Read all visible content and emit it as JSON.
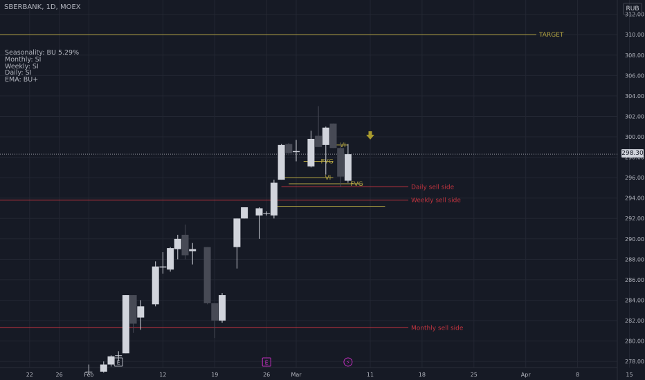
{
  "header": {
    "symbol": "SBERBANK, 1D, MOEX",
    "currency": "RUB"
  },
  "info_panel": [
    "Seasonality: BU 5.29%",
    "Monthly: SI",
    "Weekly: SI",
    "Daily: SI",
    "EMA: BU+"
  ],
  "colors": {
    "background": "#161a25",
    "bull": "#d1d4dc",
    "bear": "#474a55",
    "target": "#b5a642",
    "sell_side": "#c2343f",
    "fvg": "#b5a642",
    "axis_text": "#b2b5be"
  },
  "chart_data": {
    "type": "candlestick",
    "ylim": [
      277.4,
      313.4
    ],
    "y_ticks": [
      278,
      280,
      282,
      284,
      286,
      288,
      290,
      292,
      294,
      296,
      298,
      300,
      302,
      304,
      306,
      308,
      310,
      312
    ],
    "x_ticks": [
      {
        "label": "22",
        "day": -6
      },
      {
        "label": "26",
        "day": -2
      },
      {
        "label": "Feb",
        "day": 2
      },
      {
        "label": "12",
        "day": 12
      },
      {
        "label": "19",
        "day": 19
      },
      {
        "label": "26",
        "day": 26
      },
      {
        "label": "Mar",
        "day": 30
      },
      {
        "label": "11",
        "day": 40
      },
      {
        "label": "18",
        "day": 47
      },
      {
        "label": "25",
        "day": 54
      },
      {
        "label": "Apr",
        "day": 61
      },
      {
        "label": "8",
        "day": 68
      },
      {
        "label": "15",
        "day": 75
      }
    ],
    "candles": [
      {
        "day": 2,
        "o": 277.0,
        "h": 277.7,
        "c": 277.0,
        "l": 276.8
      },
      {
        "day": 4,
        "o": 277.0,
        "h": 278.0,
        "c": 277.7,
        "l": 276.9
      },
      {
        "day": 5,
        "o": 277.7,
        "h": 278.6,
        "c": 278.5,
        "l": 277.5
      },
      {
        "day": 6,
        "o": 278.6,
        "h": 279.0,
        "c": 278.6,
        "l": 278.0
      },
      {
        "day": 7,
        "o": 278.8,
        "h": 284.5,
        "c": 284.5,
        "l": 278.8
      },
      {
        "day": 8,
        "o": 284.5,
        "h": 284.5,
        "c": 281.7,
        "l": 280.8
      },
      {
        "day": 9,
        "o": 282.3,
        "h": 284.0,
        "c": 283.4,
        "l": 281.1
      },
      {
        "day": 11,
        "o": 283.6,
        "h": 287.8,
        "c": 287.3,
        "l": 283.4
      },
      {
        "day": 12,
        "o": 287.2,
        "h": 288.7,
        "c": 287.3,
        "l": 286.6
      },
      {
        "day": 13,
        "o": 287.0,
        "h": 289.2,
        "c": 289.1,
        "l": 286.8
      },
      {
        "day": 14,
        "o": 289.0,
        "h": 290.4,
        "c": 290.0,
        "l": 288.0
      },
      {
        "day": 15,
        "o": 290.4,
        "h": 291.4,
        "c": 288.4,
        "l": 288.0
      },
      {
        "day": 16,
        "o": 288.8,
        "h": 289.6,
        "c": 289.0,
        "l": 287.5
      },
      {
        "day": 18,
        "o": 289.2,
        "h": 289.2,
        "c": 283.7,
        "l": 283.6
      },
      {
        "day": 19,
        "o": 283.7,
        "h": 283.7,
        "c": 282.0,
        "l": 280.3
      },
      {
        "day": 20,
        "o": 282.0,
        "h": 284.7,
        "c": 284.5,
        "l": 281.8
      },
      {
        "day": 22,
        "o": 289.2,
        "h": 292.0,
        "c": 292.0,
        "l": 287.1
      },
      {
        "day": 23,
        "o": 292.0,
        "h": 293.0,
        "c": 293.1,
        "l": 292.0
      },
      {
        "day": 25,
        "o": 292.3,
        "h": 293.1,
        "c": 293.0,
        "l": 290.0
      },
      {
        "day": 26,
        "o": 292.5,
        "h": 292.7,
        "c": 292.5,
        "l": 292.3
      },
      {
        "day": 27,
        "o": 292.3,
        "h": 295.8,
        "c": 295.5,
        "l": 292.0
      },
      {
        "day": 28,
        "o": 295.8,
        "h": 299.3,
        "c": 299.2,
        "l": 295.8
      },
      {
        "day": 29,
        "o": 299.3,
        "h": 299.4,
        "c": 298.4,
        "l": 298.2
      },
      {
        "day": 30,
        "o": 298.5,
        "h": 299.7,
        "c": 298.6,
        "l": 297.6
      },
      {
        "day": 32,
        "o": 297.1,
        "h": 300.6,
        "c": 299.8,
        "l": 297.0
      },
      {
        "day": 33,
        "o": 300.1,
        "h": 303.0,
        "c": 299.0,
        "l": 299.0
      },
      {
        "day": 34,
        "o": 299.2,
        "h": 301.0,
        "c": 300.9,
        "l": 296.3
      },
      {
        "day": 35,
        "o": 301.3,
        "h": 301.3,
        "c": 298.9,
        "l": 298.9
      },
      {
        "day": 36,
        "o": 298.9,
        "h": 299.4,
        "c": 296.1,
        "l": 295.1
      },
      {
        "day": 37,
        "o": 295.7,
        "h": 299.3,
        "c": 298.3,
        "l": 295.5
      }
    ],
    "hlines": [
      {
        "y": 310.0,
        "label": "TARGET",
        "kind": "target",
        "from": "left"
      },
      {
        "y": 293.8,
        "label": "Weekly sell side",
        "kind": "sell",
        "from": "left"
      },
      {
        "y": 281.3,
        "label": "Monthly sell side",
        "kind": "sell",
        "from": "left"
      },
      {
        "y": 295.1,
        "label": "Daily sell side",
        "kind": "sell",
        "from": 28
      },
      {
        "y": 297.6,
        "label": "FVG",
        "kind": "fvg",
        "from": 31,
        "to": 35
      },
      {
        "y": 295.4,
        "label": "FVG",
        "kind": "fvg",
        "from": 29,
        "to": 39
      },
      {
        "y": 299.2,
        "label": "VI",
        "kind": "fvg",
        "from": 35,
        "to": 37
      },
      {
        "y": 296.0,
        "label": "VI",
        "kind": "fvg",
        "from": 28,
        "to": 35
      },
      {
        "y": 293.2,
        "label": "",
        "kind": "fvg",
        "from": 27,
        "to": 42
      }
    ],
    "current_price": "298.30",
    "current_price_value": 298.3,
    "event_markers": [
      {
        "label": "E",
        "day": 6
      },
      {
        "label": "E",
        "day": 26
      },
      {
        "label": "⚡",
        "day": 37
      }
    ],
    "signal_arrow": {
      "day": 40,
      "y": 300.0,
      "direction": "down"
    },
    "grid": true
  }
}
